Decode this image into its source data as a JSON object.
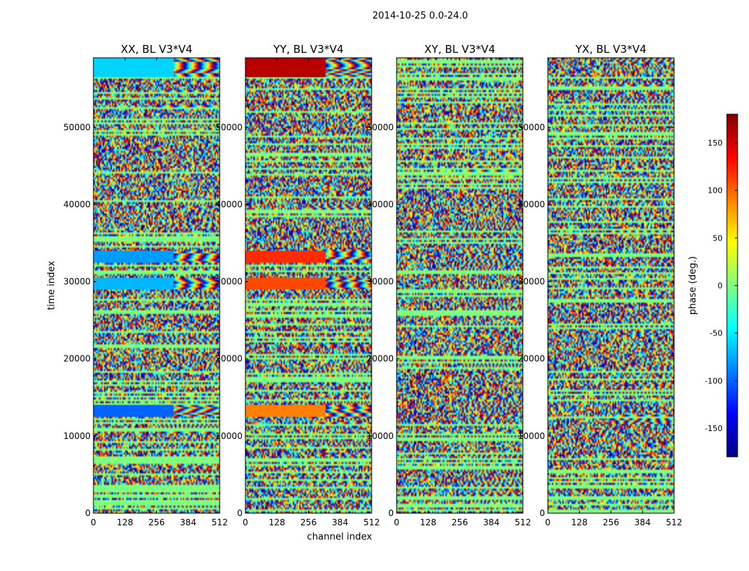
{
  "figure_title": "2014-10-25 0.0-24.0",
  "chart_data": {
    "type": "heatmap",
    "xlabel": "channel index",
    "ylabel": "time index",
    "xlim": [
      0,
      512
    ],
    "ylim": [
      0,
      59000
    ],
    "xticks": [
      0,
      128,
      256,
      384,
      512
    ],
    "yticks": [
      0,
      10000,
      20000,
      30000,
      40000,
      50000
    ],
    "colormap": "jet",
    "colorbar": {
      "label": "phase (deg.)",
      "range": [
        -180,
        180
      ],
      "ticks": [
        -150,
        -100,
        -50,
        0,
        50,
        100,
        150
      ]
    },
    "panels": [
      {
        "title": "XX, BL V3*V4",
        "bands": [
          {
            "t0": 56500,
            "t1": 59000,
            "phase": -60
          },
          {
            "t0": 32500,
            "t1": 34000,
            "phase": -80
          },
          {
            "t0": 29000,
            "t1": 30500,
            "phase": -70
          },
          {
            "t0": 12500,
            "t1": 14000,
            "phase": -100
          }
        ]
      },
      {
        "title": "YY, BL V3*V4",
        "bands": [
          {
            "t0": 56500,
            "t1": 59000,
            "phase": 160
          },
          {
            "t0": 32500,
            "t1": 34000,
            "phase": 120
          },
          {
            "t0": 29000,
            "t1": 30500,
            "phase": 110
          },
          {
            "t0": 12500,
            "t1": 14000,
            "phase": 90
          }
        ]
      },
      {
        "title": "XY, BL V3*V4",
        "bands": []
      },
      {
        "title": "YX, BL V3*V4",
        "bands": []
      }
    ]
  }
}
